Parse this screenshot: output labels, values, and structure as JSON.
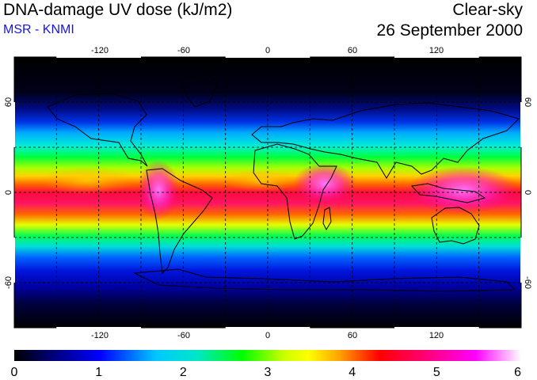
{
  "header": {
    "title": "DNA-damage UV dose (kJ/m2)",
    "subtitle": "MSR - KNMI",
    "sky_condition": "Clear-sky",
    "date": "26 September 2000"
  },
  "map": {
    "projection": "equirectangular",
    "lon_range": [
      -180,
      180
    ],
    "lat_range": [
      -90,
      90
    ],
    "grid": "dashed, every 30 degrees",
    "lon_tick_labels": [
      "-120",
      "-60",
      "0",
      "60",
      "120"
    ],
    "lat_tick_labels": [
      "60",
      "0",
      "-60"
    ],
    "colormap_stops": [
      "#000000",
      "#000080",
      "#0000ff",
      "#00c8ff",
      "#00e6c8",
      "#00ff00",
      "#c8ff00",
      "#ffff00",
      "#ffa500",
      "#ff0000",
      "#ff0080",
      "#ff00ff",
      "#ffffff"
    ]
  },
  "colorbar": {
    "min": 0,
    "max": 6,
    "tick_labels": [
      "0",
      "1",
      "2",
      "3",
      "4",
      "5",
      "6"
    ]
  }
}
